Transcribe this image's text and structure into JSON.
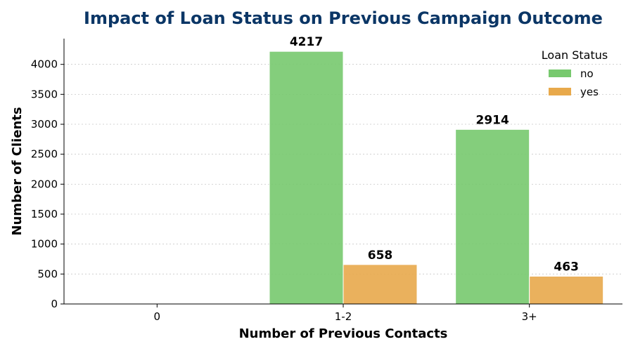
{
  "colors": {
    "no": "#77c96e",
    "yes": "#e8a94b",
    "title": "#0b3666"
  },
  "chart_data": {
    "type": "bar",
    "title": "Impact of Loan Status on Previous Campaign Outcome",
    "xlabel": "Number of Previous Contacts",
    "ylabel": "Number of Clients",
    "categories": [
      "0",
      "1-2",
      "3+"
    ],
    "series": [
      {
        "name": "no",
        "values": [
          0,
          4217,
          2914
        ]
      },
      {
        "name": "yes",
        "values": [
          0,
          658,
          463
        ]
      }
    ],
    "data_labels": [
      "4217",
      "658",
      "2914",
      "463"
    ],
    "ylim": [
      0,
      4430
    ],
    "yticks": [
      0,
      500,
      1000,
      1500,
      2000,
      2500,
      3000,
      3500,
      4000
    ],
    "grid": "horizontal dotted",
    "legend": {
      "title": "Loan Status",
      "placement": "top-right"
    }
  }
}
